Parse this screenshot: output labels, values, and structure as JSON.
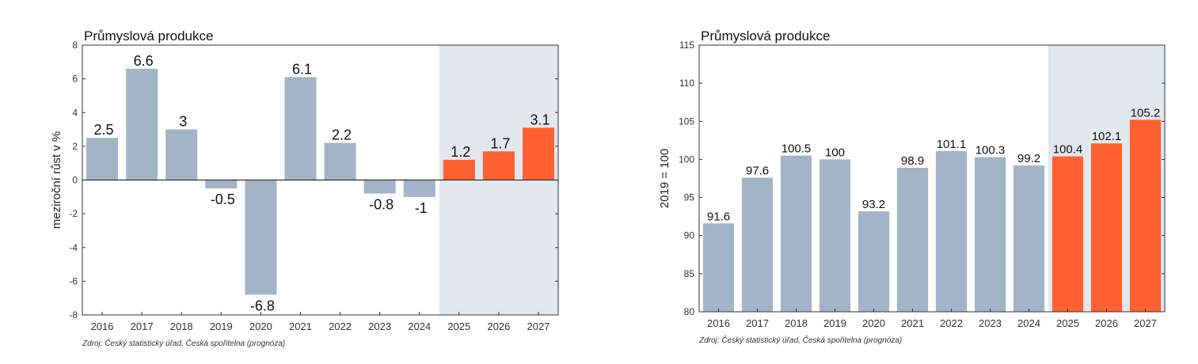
{
  "chart_data": [
    {
      "type": "bar",
      "title": "Průmyslová produkce",
      "ylabel": "meziroční růst v %",
      "xlabel": "",
      "source": "Zdroj: Český statistický úřad, Česká spořitelna (prognóza)",
      "ylim": [
        -8,
        8
      ],
      "yticks": [
        -8,
        -6,
        -4,
        -2,
        0,
        2,
        4,
        6,
        8
      ],
      "categories": [
        "2016",
        "2017",
        "2018",
        "2019",
        "2020",
        "2021",
        "2022",
        "2023",
        "2024",
        "2025",
        "2026",
        "2027"
      ],
      "values": [
        2.5,
        6.6,
        3,
        -0.5,
        -6.8,
        6.1,
        2.2,
        -0.8,
        -1,
        1.2,
        1.7,
        3.1
      ],
      "labels": [
        "2.5",
        "6.6",
        "3",
        "-0.5",
        "-6.8",
        "6.1",
        "2.2",
        "-0.8",
        "-1",
        "1.2",
        "1.7",
        "3.1"
      ],
      "forecast_from_index": 9,
      "colors": {
        "actual": "#a3b4c8",
        "forecast": "#ff6130",
        "forecast_bg": "#e3e8ef",
        "zero_line": "#333333"
      }
    },
    {
      "type": "bar",
      "title": "Průmyslová produkce",
      "ylabel": "2019 = 100",
      "xlabel": "",
      "source": "Zdroj: Český statistický úřad, Česká spořitelna (prognóza)",
      "ylim": [
        80,
        115
      ],
      "yticks": [
        80,
        85,
        90,
        95,
        100,
        105,
        110,
        115
      ],
      "categories": [
        "2016",
        "2017",
        "2018",
        "2019",
        "2020",
        "2021",
        "2022",
        "2023",
        "2024",
        "2025",
        "2026",
        "2027"
      ],
      "values": [
        91.6,
        97.6,
        100.5,
        100,
        93.2,
        98.9,
        101.1,
        100.3,
        99.2,
        100.4,
        102.1,
        105.2
      ],
      "labels": [
        "91.6",
        "97.6",
        "100.5",
        "100",
        "93.2",
        "98.9",
        "101.1",
        "100.3",
        "99.2",
        "100.4",
        "102.1",
        "105.2"
      ],
      "forecast_from_index": 9,
      "colors": {
        "actual": "#a3b4c8",
        "forecast": "#ff6130",
        "forecast_bg": "#e3e8ef",
        "zero_line": "#333333"
      }
    }
  ]
}
